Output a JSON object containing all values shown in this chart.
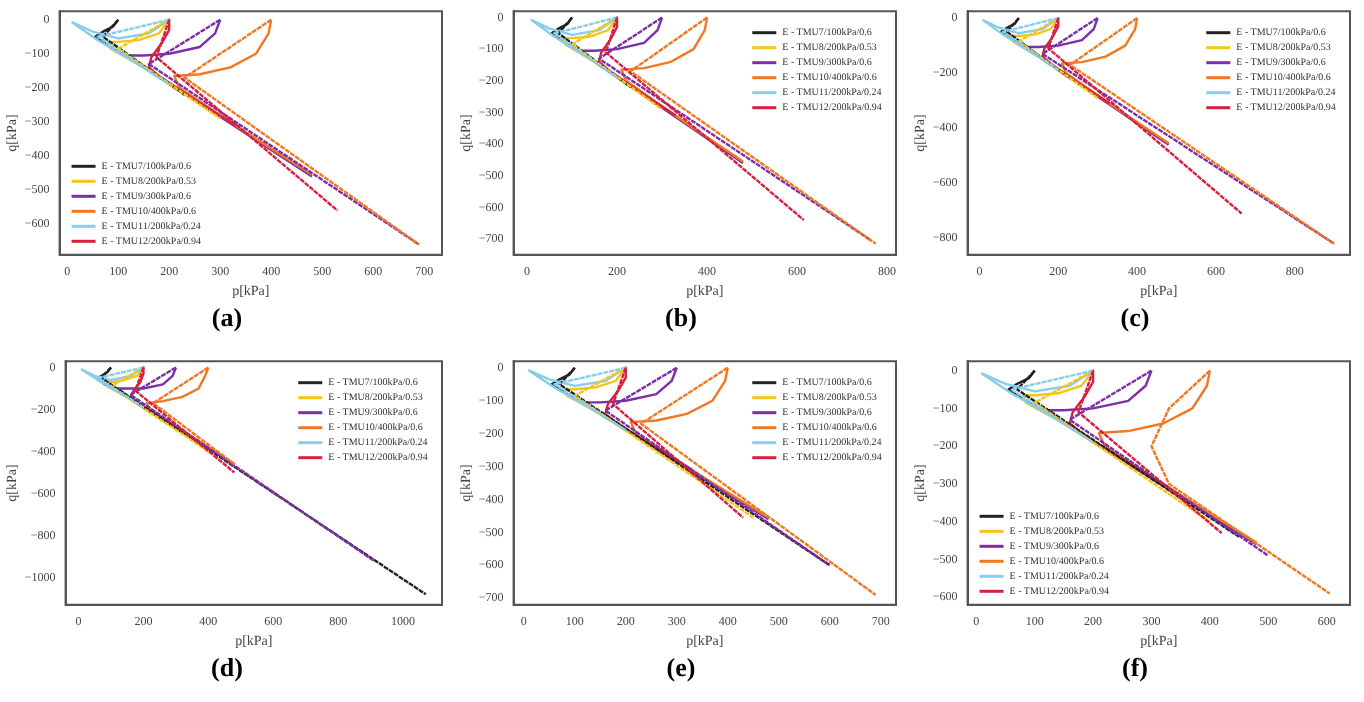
{
  "chart_data": [
    {
      "type": "line",
      "title": "(a)",
      "xlabel": "p[kPa]",
      "ylabel": "q[kPa]",
      "xlim": [
        -15,
        735
      ],
      "xticks": [
        0,
        100,
        200,
        300,
        400,
        500,
        600,
        700
      ],
      "ylim": [
        -690,
        25
      ],
      "yticks": [
        0,
        -100,
        -200,
        -300,
        -400,
        -500,
        -600
      ],
      "legend": "bottom left",
      "marker": "none",
      "series": [
        {
          "name": "E - TMU7/100kPa/0.6",
          "color": "#222222",
          "x": [
            100,
            90,
            70,
            55,
            80,
            150,
            230
          ],
          "values": [
            0,
            -20,
            -35,
            -50,
            -75,
            -140,
            -215
          ]
        },
        {
          "name": "E - TMU8/200kPa/0.53",
          "color": "#f5c518",
          "x": [
            200,
            180,
            140,
            100,
            80,
            85,
            150,
            250,
            350
          ],
          "values": [
            0,
            -40,
            -60,
            -65,
            -65,
            -85,
            -140,
            -235,
            -330
          ]
        },
        {
          "name": "E - TMU9/300kPa/0.6",
          "color": "#7b2fa8",
          "x": [
            300,
            290,
            260,
            200,
            150,
            120,
            160,
            300,
            480
          ],
          "values": [
            0,
            -40,
            -80,
            -100,
            -105,
            -105,
            -150,
            -285,
            -460
          ]
        },
        {
          "name": "E - TMU10/400kPa/0.6",
          "color": "#f07820",
          "x": [
            400,
            395,
            370,
            320,
            260,
            210,
            220,
            350,
            480
          ],
          "values": [
            0,
            -40,
            -100,
            -140,
            -160,
            -165,
            -200,
            -330,
            -455
          ]
        },
        {
          "name": "E - TMU11/200kPa/0.24",
          "color": "#87ceeb",
          "x": [
            200,
            160,
            100,
            50,
            10,
            60,
            150,
            230
          ],
          "values": [
            0,
            -40,
            -55,
            -35,
            -8,
            -60,
            -140,
            -215
          ]
        },
        {
          "name": "E - TMU12/200kPa/0.94",
          "color": "#d62040",
          "x": [
            200,
            200,
            185,
            165,
            160,
            180,
            250,
            330
          ],
          "values": [
            0,
            -30,
            -70,
            -110,
            -140,
            -165,
            -235,
            -310
          ]
        },
        {
          "color": "#222222",
          "line_style": "dashed",
          "x": [
            100,
            70,
            230
          ],
          "values": [
            0,
            -50,
            -220
          ]
        },
        {
          "color": "#f5c518",
          "line_style": "dashed",
          "x": [
            200,
            100,
            300
          ],
          "values": [
            0,
            -85,
            -290
          ]
        },
        {
          "color": "#7b2fa8",
          "line_style": "dashed",
          "x": [
            300,
            160,
            690
          ],
          "values": [
            0,
            -130,
            -660
          ]
        },
        {
          "color": "#f07820",
          "line_style": "dashed",
          "x": [
            400,
            230,
            690
          ],
          "values": [
            0,
            -170,
            -660
          ]
        },
        {
          "color": "#87ceeb",
          "line_style": "dashed",
          "x": [
            200,
            60,
            200
          ],
          "values": [
            0,
            -50,
            -190
          ]
        },
        {
          "color": "#d62040",
          "line_style": "dashed",
          "x": [
            200,
            175,
            530
          ],
          "values": [
            0,
            -110,
            -560
          ]
        }
      ]
    },
    {
      "type": "line",
      "title": "(b)",
      "xlabel": "p[kPa]",
      "ylabel": "q[kPa]",
      "xlim": [
        -30,
        820
      ],
      "xticks": [
        0,
        200,
        400,
        600,
        800
      ],
      "ylim": [
        -750,
        20
      ],
      "yticks": [
        0,
        -100,
        -200,
        -300,
        -400,
        -500,
        -600,
        -700
      ],
      "legend": "top right",
      "marker": "none",
      "series": [
        {
          "name": "E - TMU7/100kPa/0.6",
          "color": "#222222",
          "x": [
            100,
            90,
            70,
            55,
            80,
            150,
            230
          ],
          "values": [
            0,
            -20,
            -35,
            -50,
            -75,
            -140,
            -215
          ]
        },
        {
          "name": "E - TMU8/200kPa/0.53",
          "color": "#f5c518",
          "x": [
            200,
            180,
            140,
            100,
            80,
            85,
            150,
            250,
            350
          ],
          "values": [
            0,
            -40,
            -60,
            -65,
            -65,
            -85,
            -140,
            -235,
            -330
          ]
        },
        {
          "name": "E - TMU9/300kPa/0.6",
          "color": "#7b2fa8",
          "x": [
            300,
            290,
            260,
            200,
            150,
            120,
            160,
            300,
            480
          ],
          "values": [
            0,
            -40,
            -80,
            -100,
            -105,
            -105,
            -150,
            -285,
            -460
          ]
        },
        {
          "name": "E - TMU10/400kPa/0.6",
          "color": "#f07820",
          "x": [
            400,
            395,
            370,
            320,
            260,
            210,
            220,
            350,
            480
          ],
          "values": [
            0,
            -40,
            -100,
            -140,
            -160,
            -165,
            -200,
            -330,
            -455
          ]
        },
        {
          "name": "E - TMU11/200kPa/0.24",
          "color": "#87ceeb",
          "x": [
            200,
            160,
            100,
            50,
            10,
            60,
            150,
            230
          ],
          "values": [
            0,
            -40,
            -55,
            -35,
            -8,
            -60,
            -140,
            -215
          ]
        },
        {
          "name": "E - TMU12/200kPa/0.94",
          "color": "#d62040",
          "x": [
            200,
            200,
            185,
            165,
            160,
            180,
            250,
            330
          ],
          "values": [
            0,
            -30,
            -70,
            -110,
            -140,
            -165,
            -235,
            -310
          ]
        },
        {
          "color": "#222222",
          "line_style": "dashed",
          "x": [
            100,
            70,
            230
          ],
          "values": [
            0,
            -50,
            -220
          ]
        },
        {
          "color": "#f5c518",
          "line_style": "dashed",
          "x": [
            200,
            100,
            300
          ],
          "values": [
            0,
            -85,
            -290
          ]
        },
        {
          "color": "#7b2fa8",
          "line_style": "dashed",
          "x": [
            300,
            160,
            765
          ],
          "values": [
            0,
            -130,
            -705
          ]
        },
        {
          "color": "#f07820",
          "line_style": "dashed",
          "x": [
            400,
            230,
            775
          ],
          "values": [
            0,
            -170,
            -715
          ]
        },
        {
          "color": "#87ceeb",
          "line_style": "dashed",
          "x": [
            200,
            60,
            200
          ],
          "values": [
            0,
            -50,
            -190
          ]
        },
        {
          "color": "#d62040",
          "line_style": "dashed",
          "x": [
            200,
            175,
            615
          ],
          "values": [
            0,
            -110,
            -640
          ]
        }
      ]
    },
    {
      "type": "line",
      "title": "(c)",
      "xlabel": "p[kPa]",
      "ylabel": "q[kPa]",
      "xlim": [
        -30,
        940
      ],
      "xticks": [
        0,
        200,
        400,
        600,
        800
      ],
      "ylim": [
        -860,
        25
      ],
      "yticks": [
        0,
        -200,
        -400,
        -600,
        -800
      ],
      "legend": "top right",
      "marker": "none",
      "series": [
        {
          "name": "E - TMU7/100kPa/0.6",
          "color": "#222222",
          "x": [
            100,
            90,
            70,
            55,
            80,
            150,
            230
          ],
          "values": [
            0,
            -20,
            -35,
            -50,
            -75,
            -140,
            -215
          ]
        },
        {
          "name": "E - TMU8/200kPa/0.53",
          "color": "#f5c518",
          "x": [
            200,
            180,
            140,
            100,
            80,
            85,
            150,
            250,
            350
          ],
          "values": [
            0,
            -40,
            -60,
            -65,
            -65,
            -85,
            -140,
            -235,
            -330
          ]
        },
        {
          "name": "E - TMU9/300kPa/0.6",
          "color": "#7b2fa8",
          "x": [
            300,
            290,
            260,
            200,
            150,
            120,
            160,
            300,
            480
          ],
          "values": [
            0,
            -40,
            -80,
            -100,
            -105,
            -105,
            -150,
            -285,
            -460
          ]
        },
        {
          "name": "E - TMU10/400kPa/0.6",
          "color": "#f07820",
          "x": [
            400,
            395,
            370,
            320,
            260,
            210,
            220,
            350,
            480
          ],
          "values": [
            0,
            -40,
            -100,
            -140,
            -160,
            -165,
            -200,
            -330,
            -455
          ]
        },
        {
          "name": "E - TMU11/200kPa/0.24",
          "color": "#87ceeb",
          "x": [
            200,
            160,
            100,
            50,
            10,
            60,
            150,
            230
          ],
          "values": [
            0,
            -40,
            -55,
            -35,
            -8,
            -60,
            -140,
            -215
          ]
        },
        {
          "name": "E - TMU12/200kPa/0.94",
          "color": "#d62040",
          "x": [
            200,
            200,
            185,
            165,
            160,
            180,
            250,
            330
          ],
          "values": [
            0,
            -30,
            -70,
            -110,
            -140,
            -165,
            -235,
            -310
          ]
        },
        {
          "color": "#222222",
          "line_style": "dashed",
          "x": [
            100,
            70,
            230
          ],
          "values": [
            0,
            -50,
            -220
          ]
        },
        {
          "color": "#f5c518",
          "line_style": "dashed",
          "x": [
            200,
            100,
            300
          ],
          "values": [
            0,
            -85,
            -290
          ]
        },
        {
          "color": "#7b2fa8",
          "line_style": "dashed",
          "x": [
            300,
            160,
            900
          ],
          "values": [
            0,
            -130,
            -820
          ]
        },
        {
          "color": "#f07820",
          "line_style": "dashed",
          "x": [
            400,
            230,
            900
          ],
          "values": [
            0,
            -170,
            -820
          ]
        },
        {
          "color": "#87ceeb",
          "line_style": "dashed",
          "x": [
            200,
            60,
            200
          ],
          "values": [
            0,
            -50,
            -190
          ]
        },
        {
          "color": "#d62040",
          "line_style": "dashed",
          "x": [
            200,
            175,
            665
          ],
          "values": [
            0,
            -110,
            -710
          ]
        }
      ]
    },
    {
      "type": "line",
      "title": "(d)",
      "xlabel": "p[kPa]",
      "ylabel": "q[kPa]",
      "xlim": [
        -40,
        1120
      ],
      "xticks": [
        0,
        200,
        400,
        600,
        800,
        1000
      ],
      "ylim": [
        -1130,
        30
      ],
      "yticks": [
        0,
        -200,
        -400,
        -600,
        -800,
        -1000
      ],
      "legend": "top right",
      "marker": "none",
      "series": [
        {
          "name": "E - TMU7/100kPa/0.6",
          "color": "#222222",
          "x": [
            100,
            90,
            70,
            60,
            80,
            150,
            230
          ],
          "values": [
            0,
            -20,
            -40,
            -50,
            -80,
            -140,
            -220
          ]
        },
        {
          "name": "E - TMU8/200kPa/0.53",
          "color": "#f5c518",
          "x": [
            200,
            180,
            140,
            100,
            80,
            90,
            150,
            250,
            350
          ],
          "values": [
            0,
            -40,
            -60,
            -70,
            -70,
            -90,
            -140,
            -240,
            -330
          ]
        },
        {
          "name": "E - TMU9/300kPa/0.6",
          "color": "#7b2fa8",
          "x": [
            300,
            290,
            260,
            200,
            150,
            120,
            160,
            300,
            480
          ],
          "values": [
            0,
            -40,
            -80,
            -100,
            -100,
            -100,
            -150,
            -290,
            -460
          ]
        },
        {
          "name": "E - TMU10/400kPa/0.6",
          "color": "#f07820",
          "x": [
            400,
            390,
            370,
            320,
            260,
            210,
            220,
            350,
            480
          ],
          "values": [
            0,
            -40,
            -100,
            -140,
            -160,
            -170,
            -200,
            -330,
            -460
          ]
        },
        {
          "name": "E - TMU11/200kPa/0.24",
          "color": "#87ceeb",
          "x": [
            200,
            160,
            100,
            50,
            10,
            60,
            150,
            230
          ],
          "values": [
            0,
            -40,
            -60,
            -40,
            -10,
            -60,
            -140,
            -220
          ]
        },
        {
          "name": "E - TMU12/200kPa/0.94",
          "color": "#d62040",
          "x": [
            200,
            200,
            190,
            170,
            160,
            180,
            250,
            330
          ],
          "values": [
            0,
            -30,
            -70,
            -110,
            -140,
            -170,
            -240,
            -310
          ]
        },
        {
          "color": "#222222",
          "line_style": "dashed",
          "x": [
            100,
            70,
            1070
          ],
          "values": [
            0,
            -50,
            -1080
          ]
        },
        {
          "color": "#f5c518",
          "line_style": "dashed",
          "x": [
            200,
            100,
            400
          ],
          "values": [
            0,
            -90,
            -400
          ]
        },
        {
          "color": "#7b2fa8",
          "line_style": "dashed",
          "x": [
            300,
            160,
            910
          ],
          "values": [
            0,
            -130,
            -920
          ]
        },
        {
          "color": "#f07820",
          "line_style": "dashed",
          "x": [
            400,
            230,
            480
          ],
          "values": [
            0,
            -170,
            -460
          ]
        },
        {
          "color": "#87ceeb",
          "line_style": "dashed",
          "x": [
            200,
            60,
            200
          ],
          "values": [
            0,
            -50,
            -190
          ]
        },
        {
          "color": "#d62040",
          "line_style": "dashed",
          "x": [
            200,
            175,
            480
          ],
          "values": [
            0,
            -110,
            -500
          ]
        }
      ]
    },
    {
      "type": "line",
      "title": "(e)",
      "xlabel": "p[kPa]",
      "ylabel": "q[kPa]",
      "xlim": [
        -20,
        730
      ],
      "xticks": [
        0,
        100,
        200,
        300,
        400,
        500,
        600,
        700
      ],
      "ylim": [
        -720,
        20
      ],
      "yticks": [
        0,
        -100,
        -200,
        -300,
        -400,
        -500,
        -600,
        -700
      ],
      "legend": "top right",
      "marker": "none",
      "series": [
        {
          "name": "E - TMU7/100kPa/0.6",
          "color": "#222222",
          "x": [
            100,
            90,
            70,
            55,
            80,
            150,
            230
          ],
          "values": [
            0,
            -20,
            -35,
            -50,
            -75,
            -140,
            -215
          ]
        },
        {
          "name": "E - TMU8/200kPa/0.53",
          "color": "#f5c518",
          "x": [
            200,
            180,
            140,
            100,
            80,
            85,
            150,
            250,
            350
          ],
          "values": [
            0,
            -40,
            -60,
            -65,
            -65,
            -85,
            -140,
            -235,
            -330
          ]
        },
        {
          "name": "E - TMU9/300kPa/0.6",
          "color": "#7b2fa8",
          "x": [
            300,
            290,
            260,
            200,
            150,
            120,
            160,
            300,
            480
          ],
          "values": [
            0,
            -40,
            -80,
            -100,
            -105,
            -105,
            -150,
            -285,
            -460
          ]
        },
        {
          "name": "E - TMU10/400kPa/0.6",
          "color": "#f07820",
          "x": [
            400,
            395,
            370,
            320,
            260,
            210,
            220,
            350,
            480
          ],
          "values": [
            0,
            -40,
            -100,
            -140,
            -160,
            -165,
            -200,
            -330,
            -455
          ]
        },
        {
          "name": "E - TMU11/200kPa/0.24",
          "color": "#87ceeb",
          "x": [
            200,
            160,
            100,
            50,
            10,
            60,
            150,
            230
          ],
          "values": [
            0,
            -40,
            -55,
            -35,
            -8,
            -60,
            -140,
            -215
          ]
        },
        {
          "name": "E - TMU12/200kPa/0.94",
          "color": "#d62040",
          "x": [
            200,
            200,
            185,
            165,
            160,
            180,
            250,
            330
          ],
          "values": [
            0,
            -30,
            -70,
            -110,
            -140,
            -165,
            -235,
            -310
          ]
        },
        {
          "color": "#222222",
          "line_style": "dashed",
          "x": [
            100,
            70,
            600
          ],
          "values": [
            0,
            -50,
            -600
          ]
        },
        {
          "color": "#f5c518",
          "line_style": "dashed",
          "x": [
            200,
            100,
            450
          ],
          "values": [
            0,
            -85,
            -455
          ]
        },
        {
          "color": "#7b2fa8",
          "line_style": "dashed",
          "x": [
            300,
            160,
            600
          ],
          "values": [
            0,
            -130,
            -600
          ]
        },
        {
          "color": "#f07820",
          "line_style": "dashed",
          "x": [
            400,
            230,
            690
          ],
          "values": [
            0,
            -170,
            -690
          ]
        },
        {
          "color": "#87ceeb",
          "line_style": "dashed",
          "x": [
            200,
            60,
            200
          ],
          "values": [
            0,
            -50,
            -190
          ]
        },
        {
          "color": "#d62040",
          "line_style": "dashed",
          "x": [
            200,
            175,
            430
          ],
          "values": [
            0,
            -110,
            -455
          ]
        }
      ]
    },
    {
      "type": "line",
      "title": "(f)",
      "xlabel": "p[kPa]",
      "ylabel": "q[kPa]",
      "xlim": [
        -15,
        640
      ],
      "xticks": [
        0,
        100,
        200,
        300,
        400,
        500,
        600
      ],
      "ylim": [
        -620,
        25
      ],
      "yticks": [
        0,
        -100,
        -200,
        -300,
        -400,
        -500,
        -600
      ],
      "legend": "bottom left",
      "marker": "none",
      "series": [
        {
          "name": "E - TMU7/100kPa/0.6",
          "color": "#222222",
          "x": [
            100,
            90,
            70,
            55,
            80,
            150,
            230
          ],
          "values": [
            0,
            -20,
            -35,
            -50,
            -75,
            -140,
            -215
          ]
        },
        {
          "name": "E - TMU8/200kPa/0.53",
          "color": "#f5c518",
          "x": [
            200,
            180,
            140,
            100,
            80,
            85,
            150,
            250,
            350
          ],
          "values": [
            0,
            -40,
            -60,
            -65,
            -65,
            -85,
            -140,
            -235,
            -330
          ]
        },
        {
          "name": "E - TMU9/300kPa/0.6",
          "color": "#7b2fa8",
          "x": [
            300,
            290,
            260,
            200,
            150,
            120,
            160,
            300,
            480
          ],
          "values": [
            0,
            -40,
            -80,
            -100,
            -105,
            -105,
            -150,
            -285,
            -460
          ]
        },
        {
          "name": "E - TMU10/400kPa/0.6",
          "color": "#f07820",
          "x": [
            400,
            395,
            370,
            320,
            260,
            210,
            220,
            350,
            480
          ],
          "values": [
            0,
            -40,
            -100,
            -140,
            -160,
            -165,
            -200,
            -330,
            -455
          ]
        },
        {
          "name": "E - TMU11/200kPa/0.24",
          "color": "#87ceeb",
          "x": [
            200,
            160,
            100,
            50,
            10,
            60,
            150,
            230
          ],
          "values": [
            0,
            -40,
            -55,
            -35,
            -8,
            -60,
            -140,
            -215
          ]
        },
        {
          "name": "E - TMU12/200kPa/0.94",
          "color": "#d62040",
          "x": [
            200,
            200,
            185,
            165,
            160,
            180,
            250,
            330
          ],
          "values": [
            0,
            -30,
            -70,
            -110,
            -140,
            -165,
            -235,
            -310
          ]
        },
        {
          "color": "#222222",
          "line_style": "dashed",
          "x": [
            100,
            70,
            450
          ],
          "values": [
            0,
            -50,
            -440
          ]
        },
        {
          "color": "#f5c518",
          "line_style": "dashed",
          "x": [
            200,
            100,
            400
          ],
          "values": [
            0,
            -85,
            -400
          ]
        },
        {
          "color": "#7b2fa8",
          "line_style": "dashed",
          "x": [
            300,
            160,
            500
          ],
          "values": [
            0,
            -130,
            -490
          ]
        },
        {
          "color": "#f07820",
          "line_style": "dashed",
          "x": [
            400,
            330,
            300,
            330,
            605
          ],
          "values": [
            0,
            -100,
            -200,
            -300,
            -590
          ]
        },
        {
          "color": "#87ceeb",
          "line_style": "dashed",
          "x": [
            200,
            60,
            200
          ],
          "values": [
            0,
            -50,
            -190
          ]
        },
        {
          "color": "#d62040",
          "line_style": "dashed",
          "x": [
            200,
            175,
            420
          ],
          "values": [
            0,
            -110,
            -430
          ]
        }
      ]
    }
  ]
}
